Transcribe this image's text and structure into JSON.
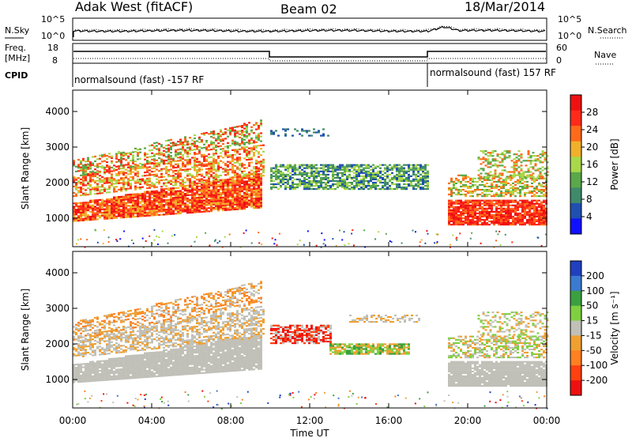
{
  "header": {
    "title": "Adak West (fitACF)",
    "beam": "Beam 02",
    "date": "18/Mar/2014"
  },
  "top_panels": {
    "nsky_label": "N.Sky",
    "nsky_ticks": [
      "10^5",
      "10^0"
    ],
    "nsearch_label": "N.Search",
    "nsearch_ticks": [
      "10^5",
      "10^0"
    ],
    "freq_label": "Freq.",
    "freq_unit": "[MHz]",
    "freq_ticks": [
      "18",
      "8"
    ],
    "nave_label": "Nave",
    "nave_ticks": [
      "60",
      "0"
    ],
    "cpid_label": "CPID",
    "cpid_left": "normalsound (fast) -157 RF",
    "cpid_right": "normalsound (fast) 157 RF"
  },
  "chart_data": [
    {
      "type": "heatmap",
      "name": "power",
      "xlabel": "Time UT",
      "ylabel": "Slant Range [km]",
      "x_ticks": [
        "00:00",
        "04:00",
        "08:00",
        "12:00",
        "16:00",
        "20:00",
        "00:00"
      ],
      "xlim": [
        0,
        24
      ],
      "y_ticks": [
        1000,
        2000,
        3000,
        4000
      ],
      "ylim": [
        200,
        4600
      ],
      "colorbar": {
        "label": "Power [dB]",
        "ticks": [
          4,
          8,
          12,
          16,
          20,
          24,
          28
        ],
        "colors": [
          "#1010ff",
          "#1f4fb0",
          "#3f8a6a",
          "#5aa84a",
          "#a8d84a",
          "#f0b02a",
          "#ff6a1a",
          "#ff2a1a",
          "#ee1111"
        ]
      }
    },
    {
      "type": "heatmap",
      "name": "velocity",
      "xlabel": "Time UT",
      "ylabel": "Slant Range [km]",
      "x_ticks": [
        "00:00",
        "04:00",
        "08:00",
        "12:00",
        "16:00",
        "20:00",
        "00:00"
      ],
      "xlim": [
        0,
        24
      ],
      "y_ticks": [
        1000,
        2000,
        3000,
        4000
      ],
      "ylim": [
        200,
        4600
      ],
      "colorbar": {
        "label": "Velocity [m s⁻¹]",
        "ticks": [
          200,
          100,
          50,
          15,
          -15,
          -50,
          -100,
          -200
        ],
        "colors": [
          "#2040c0",
          "#3a7ad0",
          "#3aa040",
          "#7fd040",
          "#c0c0b8",
          "#f0a030",
          "#ff8020",
          "#ff4010",
          "#ee1010"
        ]
      }
    }
  ]
}
